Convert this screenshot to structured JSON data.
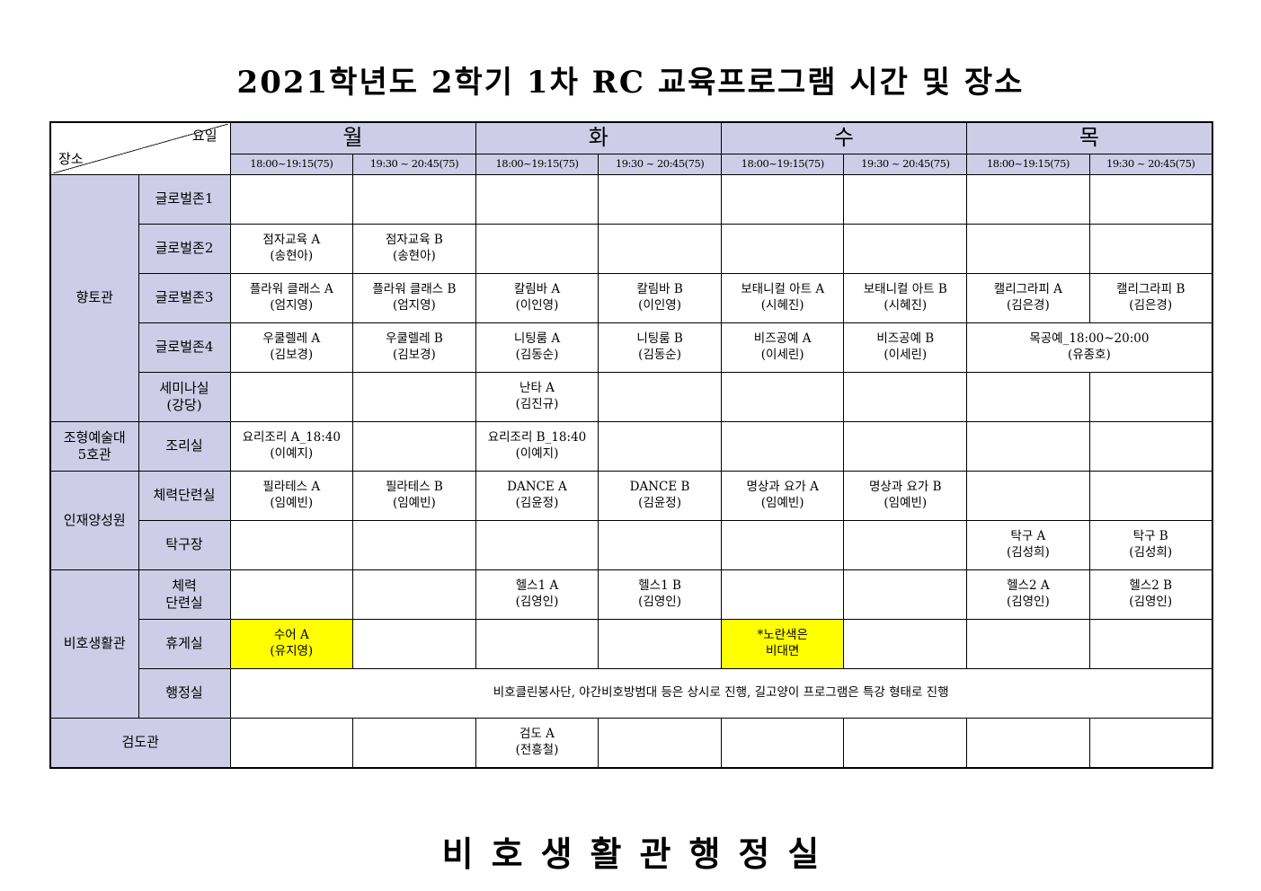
{
  "title": "2021학년도 2학기 1차 RC 교육프로그램 시간 및 장소",
  "footer": "비호생활관행정실",
  "corner": {
    "top_right": "요일",
    "bottom_left": "장소"
  },
  "colors": {
    "header_bg": "#cdcde7",
    "highlight": "#ffff00",
    "border": "#000000",
    "page_bg": "#ffffff"
  },
  "days": [
    {
      "label": "월",
      "times": [
        "18:00~19:15(75)",
        "19:30 ~ 20:45(75)"
      ]
    },
    {
      "label": "화",
      "times": [
        "18:00~19:15(75)",
        "19:30 ~ 20:45(75)"
      ]
    },
    {
      "label": "수",
      "times": [
        "18:00~19:15(75)",
        "19:30 ~ 20:45(75)"
      ]
    },
    {
      "label": "목",
      "times": [
        "18:00~19:15(75)",
        "19:30 ~ 20:45(75)"
      ]
    }
  ],
  "groups": [
    {
      "building": "향토관",
      "rows": [
        {
          "room": "글로벌존1",
          "cells": [
            {},
            {},
            {},
            {},
            {},
            {},
            {},
            {}
          ]
        },
        {
          "room": "글로벌존2",
          "cells": [
            {
              "t": "점자교육 A\n(송현아)"
            },
            {
              "t": "점자교육 B\n(송현아)"
            },
            {},
            {},
            {},
            {},
            {},
            {}
          ]
        },
        {
          "room": "글로벌존3",
          "cells": [
            {
              "t": "플라워 클래스 A\n(엄지영)"
            },
            {
              "t": "플라워 클래스 B\n(엄지영)"
            },
            {
              "t": "칼림바 A\n(이인영)"
            },
            {
              "t": "칼림바 B\n(이인영)"
            },
            {
              "t": "보태니컬 아트 A\n(시혜진)"
            },
            {
              "t": "보태니컬 아트 B\n(시혜진)"
            },
            {
              "t": "캘리그라피 A\n(김은경)"
            },
            {
              "t": "캘리그라피 B\n(김은경)"
            }
          ]
        },
        {
          "room": "글로벌존4",
          "cells": [
            {
              "t": "우쿨렐레 A\n(김보경)"
            },
            {
              "t": "우쿨렐레 B\n(김보경)"
            },
            {
              "t": "니팅룸 A\n(김동순)"
            },
            {
              "t": "니팅룸 B\n(김동순)"
            },
            {
              "t": "비즈공예 A\n(이세린)"
            },
            {
              "t": "비즈공예 B\n(이세린)"
            },
            {
              "t": "목공예_18:00~20:00\n(유종호)",
              "s": 2
            }
          ]
        },
        {
          "room": "세미나실\n(강당)",
          "cells": [
            {},
            {},
            {
              "t": "난타 A\n(김진규)"
            },
            {},
            {},
            {},
            {},
            {}
          ]
        }
      ]
    },
    {
      "building": "조형예술대\n5호관",
      "rows": [
        {
          "room": "조리실",
          "cells": [
            {
              "t": "요리조리 A_18:40\n(이예지)"
            },
            {},
            {
              "t": "요리조리 B_18:40\n(이예지)"
            },
            {},
            {},
            {},
            {},
            {}
          ]
        }
      ]
    },
    {
      "building": "인재양성원",
      "rows": [
        {
          "room": "체력단련실",
          "cells": [
            {
              "t": "필라테스 A\n(임예빈)"
            },
            {
              "t": "필라테스 B\n(임예빈)"
            },
            {
              "t": "DANCE A\n(김윤정)"
            },
            {
              "t": "DANCE B\n(김윤정)"
            },
            {
              "t": "명상과 요가 A\n(임예빈)"
            },
            {
              "t": "명상과 요가 B\n(임예빈)"
            },
            {},
            {}
          ]
        },
        {
          "room": "탁구장",
          "cells": [
            {},
            {},
            {},
            {},
            {},
            {},
            {
              "t": "탁구 A\n(김성희)"
            },
            {
              "t": "탁구 B\n(김성희)"
            }
          ]
        }
      ]
    },
    {
      "building": "비호생활관",
      "rows": [
        {
          "room": "체력\n단련실",
          "cells": [
            {},
            {},
            {
              "t": "헬스1 A\n(김영인)"
            },
            {
              "t": "헬스1 B\n(김영인)"
            },
            {},
            {},
            {
              "t": "헬스2 A\n(김영인)"
            },
            {
              "t": "헬스2 B\n(김영인)"
            }
          ]
        },
        {
          "room": "휴게실",
          "cells": [
            {
              "t": "수어 A\n(유지영)",
              "y": true
            },
            {},
            {},
            {},
            {
              "t": "*노란색은\n비대면",
              "y": true
            },
            {},
            {},
            {}
          ]
        },
        {
          "room": "행정실",
          "cells": [
            {
              "t": "비호클린봉사단, 야간비호방범대 등은 상시로 진행, 길고양이 프로그램은 특강 형태로 진행",
              "s": 8
            }
          ]
        }
      ]
    },
    {
      "building": "검도관",
      "span_label": true,
      "rows": [
        {
          "room": null,
          "cells": [
            {},
            {},
            {
              "t": "검도 A\n(전흥철)"
            },
            {},
            {},
            {},
            {},
            {}
          ]
        }
      ]
    }
  ]
}
